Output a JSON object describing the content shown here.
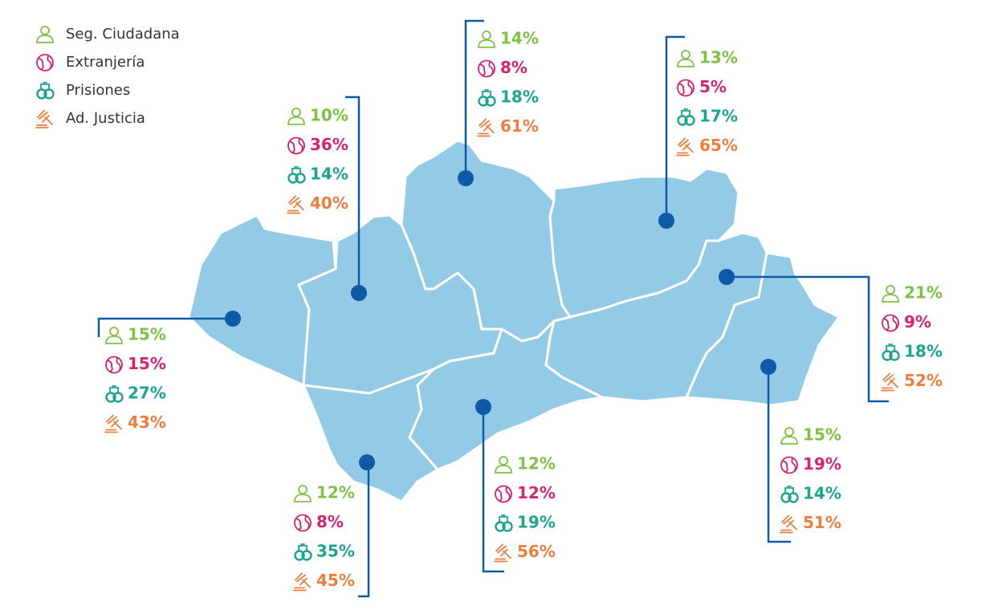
{
  "legend": [
    "Seg. Ciudadana",
    "Extranjería",
    "Prisiones",
    "Ad. Justicia"
  ],
  "regions": [
    [
      "15%",
      "15%",
      "27%",
      "43%"
    ],
    [
      "10%",
      "36%",
      "14%",
      "40%"
    ],
    [
      "14%",
      "8%",
      "18%",
      "61%"
    ],
    [
      "13%",
      "5%",
      "17%",
      "65%"
    ],
    [
      "21%",
      "9%",
      "18%",
      "52%"
    ],
    [
      "15%",
      "19%",
      "14%",
      "51%"
    ],
    [
      "12%",
      "12%",
      "19%",
      "56%"
    ],
    [
      "12%",
      "8%",
      "35%",
      "45%"
    ]
  ]
}
